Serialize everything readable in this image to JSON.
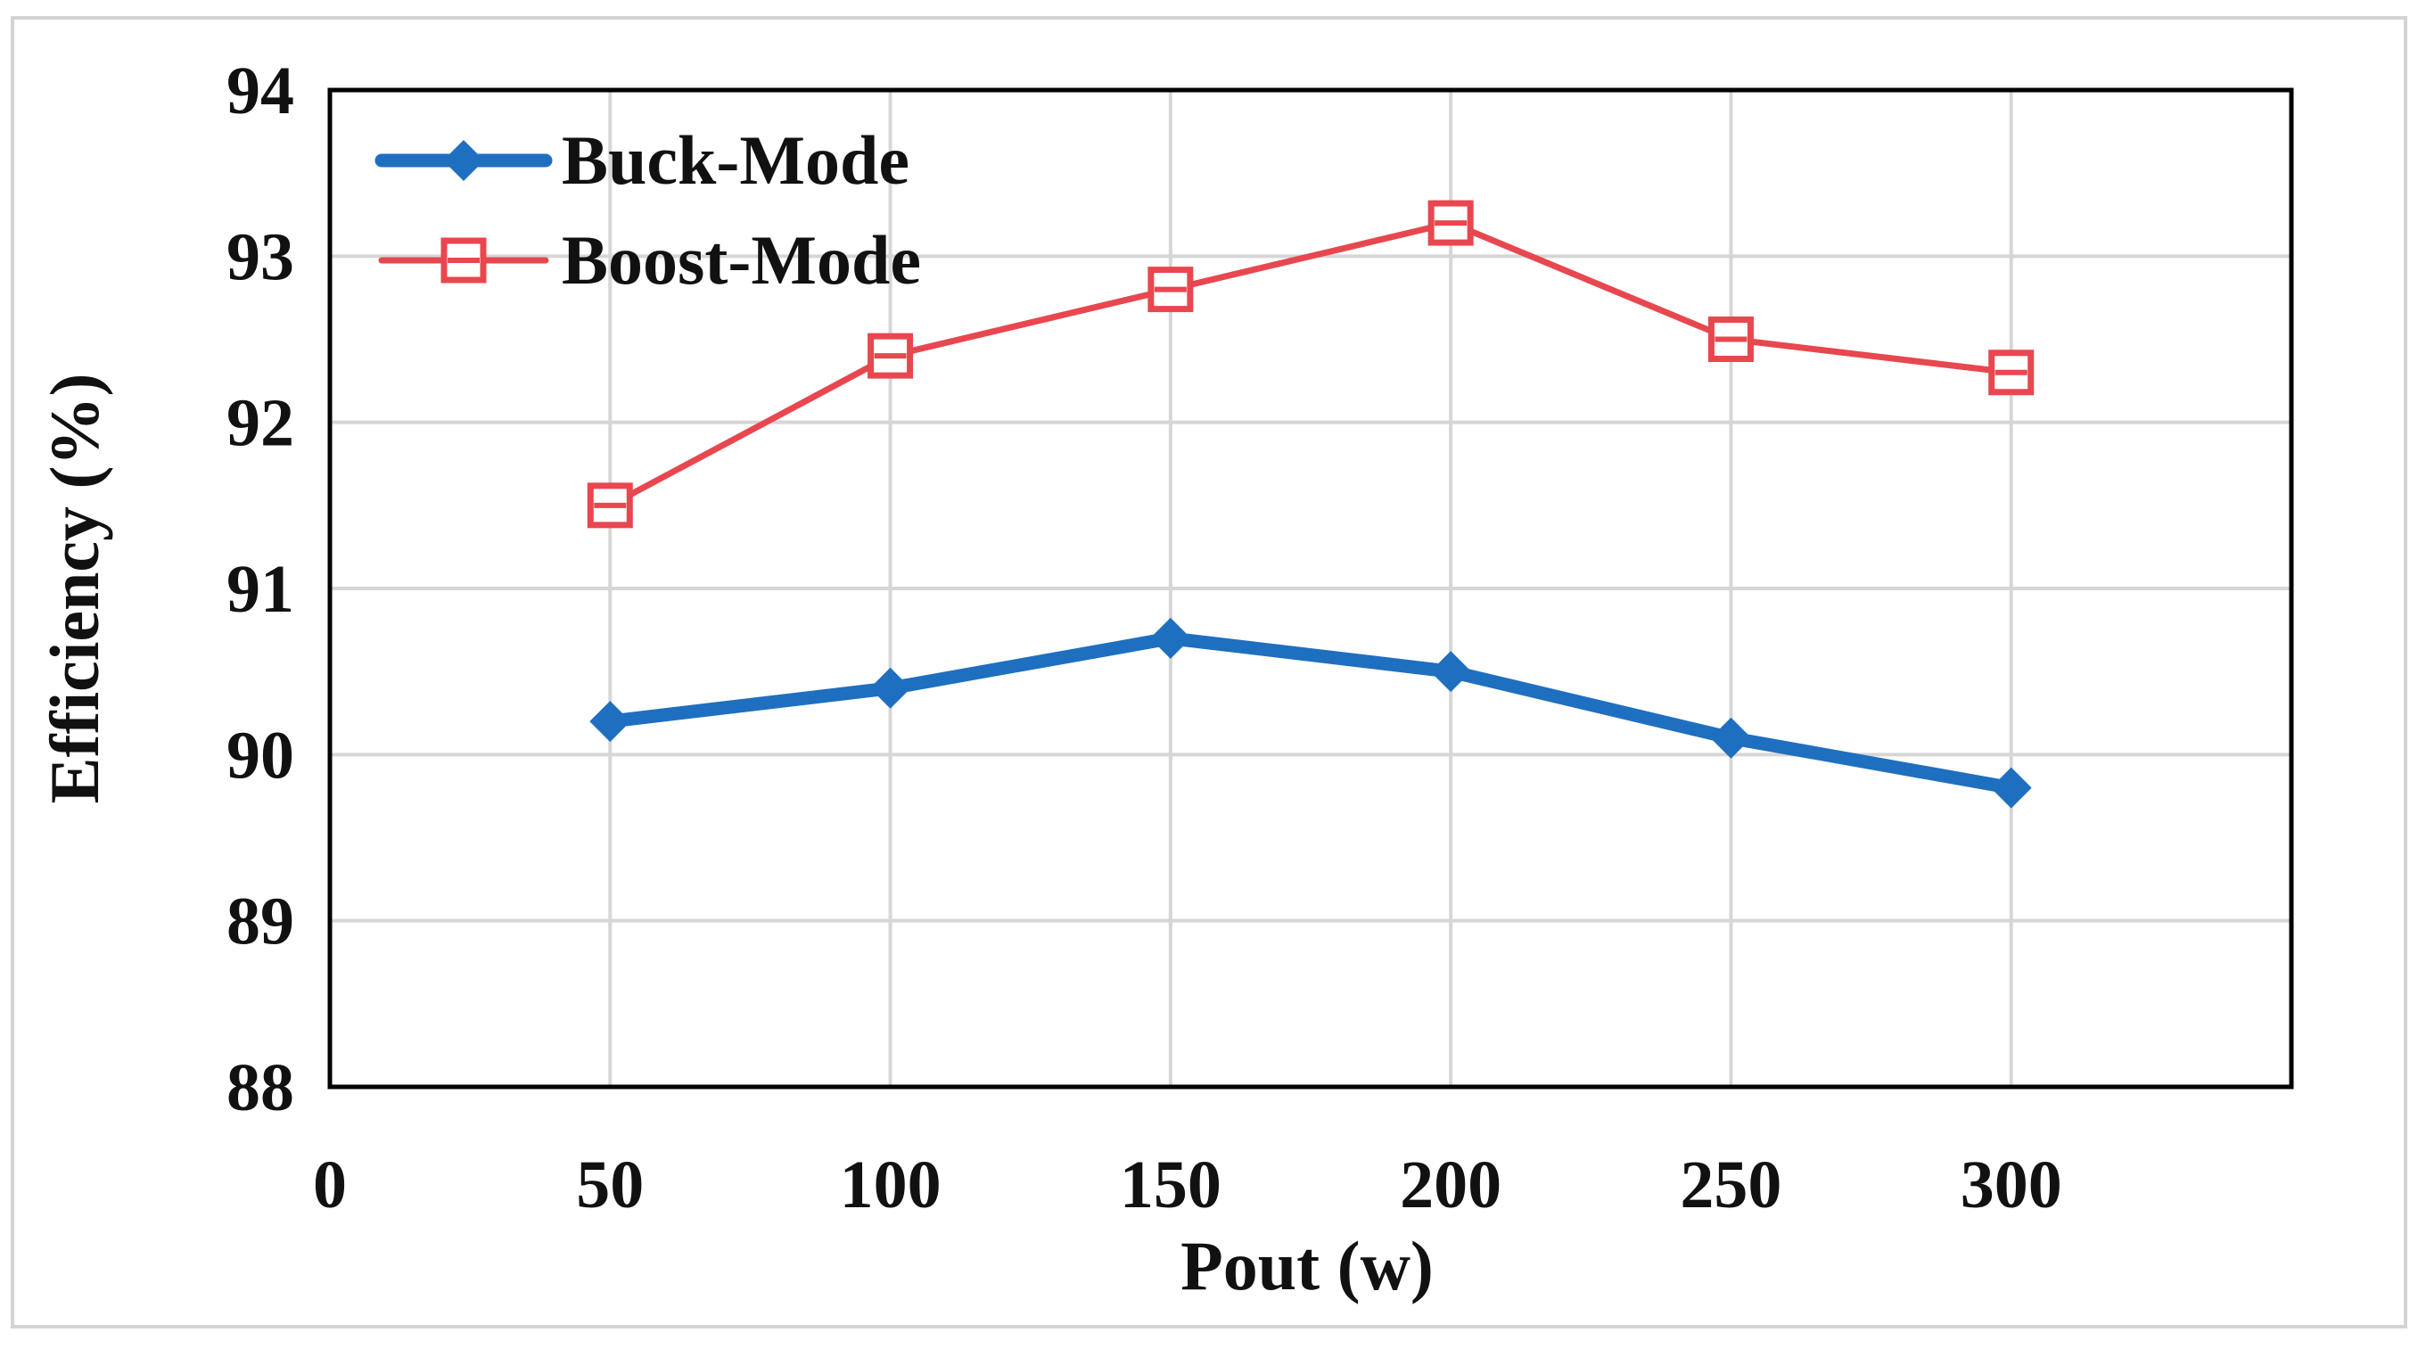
{
  "chart_data": {
    "type": "line",
    "title": "",
    "xlabel": "Pout (w)",
    "ylabel": "Efficiency (%)",
    "xlim": [
      0,
      350
    ],
    "ylim": [
      88,
      94
    ],
    "x_ticks": [
      0,
      50,
      100,
      150,
      200,
      250,
      300
    ],
    "y_ticks": [
      88,
      89,
      90,
      91,
      92,
      93,
      94
    ],
    "grid": true,
    "legend_position": "top-left",
    "x": [
      50,
      100,
      150,
      200,
      250,
      300
    ],
    "series": [
      {
        "name": "Buck-Mode",
        "color": "#1f6fc0",
        "marker": "diamond",
        "values": [
          90.2,
          90.4,
          90.7,
          90.5,
          90.1,
          89.8
        ]
      },
      {
        "name": "Boost-Mode",
        "color": "#e8474f",
        "marker": "open-square",
        "values": [
          91.5,
          92.4,
          92.8,
          93.2,
          92.5,
          92.3
        ]
      }
    ]
  }
}
